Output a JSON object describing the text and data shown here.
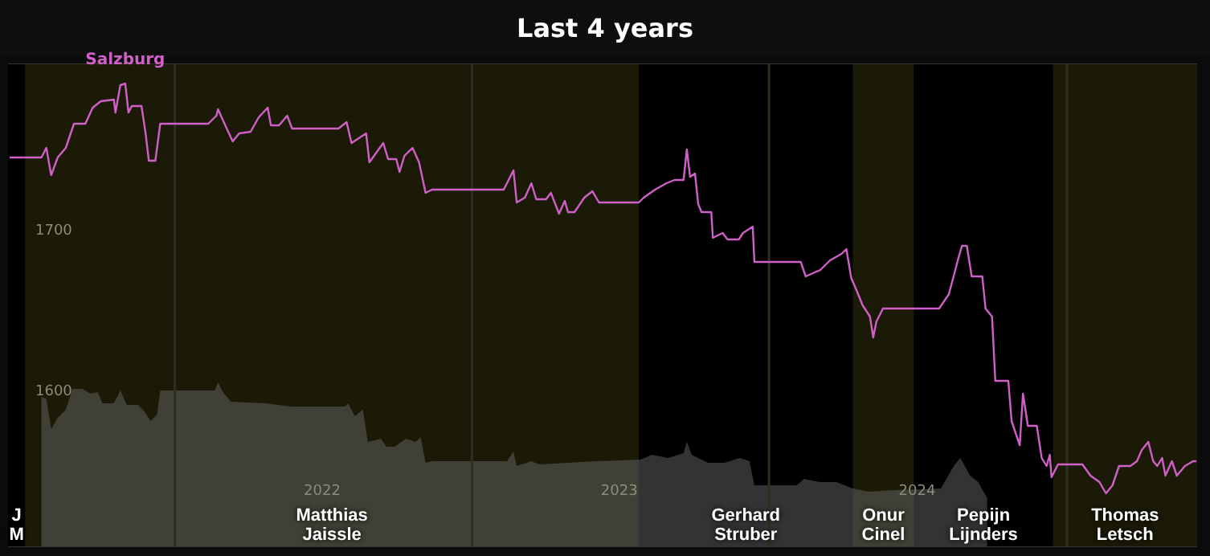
{
  "chart_data": {
    "type": "line",
    "title": "Last 4 years",
    "xlim": [
      "2021-06-10",
      "2025-06-10"
    ],
    "ylim": [
      1505,
      1805
    ],
    "yticks": [
      1600,
      1700
    ],
    "xticks": [
      {
        "value": "2022-07-01",
        "label": "2022"
      },
      {
        "value": "2023-07-01",
        "label": "2023"
      },
      {
        "value": "2024-07-01",
        "label": "2024"
      }
    ],
    "grid": "y",
    "legend": false,
    "ref_lines": [
      {
        "axis": "x",
        "value": "2022-01-01",
        "color": "#2e2e22"
      },
      {
        "axis": "x",
        "value": "2023-01-01",
        "color": "#2e2e22"
      },
      {
        "axis": "x",
        "value": "2024-01-01",
        "color": "#2e2e22"
      },
      {
        "axis": "x",
        "value": "2025-01-01",
        "color": "#2e2e22"
      }
    ],
    "bands": [
      {
        "axis": "x",
        "from": "2021-06-10",
        "to": "2021-07-01",
        "label": "J M",
        "color": "#000000"
      },
      {
        "axis": "x",
        "from": "2021-07-01",
        "to": "2023-07-25",
        "label": "Matthias Jaissle",
        "color": "#1b1a07"
      },
      {
        "axis": "x",
        "from": "2023-07-25",
        "to": "2024-04-13",
        "label": "Gerhard Struber",
        "color": "#000000"
      },
      {
        "axis": "x",
        "from": "2024-04-13",
        "to": "2024-06-27",
        "label": "Onur Cinel",
        "color": "#1b1a07"
      },
      {
        "axis": "x",
        "from": "2024-06-27",
        "to": "2024-12-15",
        "label": "Pepijn Lijnders",
        "color": "#000000"
      },
      {
        "axis": "x",
        "from": "2024-12-15",
        "to": "2025-06-10",
        "label": "Thomas Letsch",
        "color": "#1b1a07"
      }
    ],
    "series": [
      {
        "type": "area",
        "color": "#666666",
        "x": [
          "2021-07-21",
          "2021-07-27",
          "2021-08-02",
          "2021-08-10",
          "2021-08-20",
          "2021-08-28",
          "2021-09-09",
          "2021-09-20",
          "2021-09-28",
          "2021-10-04",
          "2021-10-18",
          "2021-10-26",
          "2021-11-03",
          "2021-11-17",
          "2021-11-26",
          "2021-12-02",
          "2021-12-10",
          "2021-12-14",
          "2022-02-19",
          "2022-02-23",
          "2022-03-01",
          "2022-03-11",
          "2022-04-23",
          "2022-05-23",
          "2022-07-29",
          "2022-08-02",
          "2022-08-10",
          "2022-08-20",
          "2022-08-26",
          "2022-09-11",
          "2022-09-18",
          "2022-09-28",
          "2022-10-12",
          "2022-10-24",
          "2022-10-30",
          "2022-11-05",
          "2022-11-13",
          "2023-02-13",
          "2023-02-21",
          "2023-02-25",
          "2023-03-15",
          "2023-03-25",
          "2023-06-02",
          "2023-07-27",
          "2023-08-10",
          "2023-08-30",
          "2023-09-18",
          "2023-09-22",
          "2023-09-28",
          "2023-10-18",
          "2023-11-07",
          "2023-11-26",
          "2023-12-08",
          "2023-12-14",
          "2024-02-04",
          "2024-02-13",
          "2024-03-04",
          "2024-03-24",
          "2024-04-13",
          "2024-05-02",
          "2024-06-01",
          "2024-07-30",
          "2024-08-15",
          "2024-08-23",
          "2024-09-04",
          "2024-09-14",
          "2024-09-25"
        ],
        "values": [
          1598,
          1597,
          1578,
          1585,
          1590,
          1603,
          1603,
          1600,
          1601,
          1594,
          1594,
          1602,
          1593,
          1593,
          1588,
          1583,
          1587,
          1602,
          1602,
          1607,
          1601,
          1595,
          1594,
          1592,
          1592,
          1594,
          1586,
          1590,
          1570,
          1572,
          1567,
          1567,
          1572,
          1570,
          1573,
          1557,
          1558,
          1558,
          1564,
          1555,
          1558,
          1556,
          1558,
          1559,
          1562,
          1560,
          1563,
          1570,
          1562,
          1557,
          1557,
          1560,
          1558,
          1543,
          1543,
          1547,
          1545,
          1545,
          1541,
          1539,
          1540,
          1541,
          1555,
          1560,
          1549,
          1545,
          1535
        ]
      },
      {
        "type": "line",
        "name": "Salzburg",
        "color": "#d060c8",
        "x": [
          "2021-06-12",
          "2021-07-21",
          "2021-07-27",
          "2021-08-02",
          "2021-08-10",
          "2021-08-20",
          "2021-08-30",
          "2021-09-13",
          "2021-09-22",
          "2021-10-02",
          "2021-10-18",
          "2021-10-20",
          "2021-10-26",
          "2021-11-01",
          "2021-11-05",
          "2021-11-09",
          "2021-11-21",
          "2021-11-26",
          "2021-11-30",
          "2021-12-08",
          "2021-12-14",
          "2022-02-11",
          "2022-02-21",
          "2022-02-23",
          "2022-03-03",
          "2022-03-13",
          "2022-03-21",
          "2022-04-04",
          "2022-04-14",
          "2022-04-25",
          "2022-04-29",
          "2022-05-09",
          "2022-05-19",
          "2022-05-25",
          "2022-07-21",
          "2022-07-31",
          "2022-08-06",
          "2022-08-24",
          "2022-08-28",
          "2022-09-14",
          "2022-09-20",
          "2022-09-30",
          "2022-10-04",
          "2022-10-10",
          "2022-10-20",
          "2022-10-28",
          "2022-11-05",
          "2022-11-13",
          "2023-02-09",
          "2023-02-21",
          "2023-02-25",
          "2023-03-07",
          "2023-03-15",
          "2023-03-21",
          "2023-04-02",
          "2023-04-08",
          "2023-04-18",
          "2023-04-25",
          "2023-04-29",
          "2023-05-07",
          "2023-05-19",
          "2023-05-29",
          "2023-06-06",
          "2023-07-25",
          "2023-07-31",
          "2023-08-14",
          "2023-08-28",
          "2023-09-07",
          "2023-09-18",
          "2023-09-22",
          "2023-09-26",
          "2023-10-02",
          "2023-10-06",
          "2023-10-10",
          "2023-10-22",
          "2023-10-24",
          "2023-11-05",
          "2023-11-11",
          "2023-11-25",
          "2023-11-30",
          "2023-12-12",
          "2023-12-14",
          "2024-02-09",
          "2024-02-15",
          "2024-03-04",
          "2024-03-16",
          "2024-03-30",
          "2024-04-05",
          "2024-04-11",
          "2024-04-17",
          "2024-04-25",
          "2024-05-04",
          "2024-05-08",
          "2024-05-12",
          "2024-05-20",
          "2024-07-28",
          "2024-08-09",
          "2024-08-21",
          "2024-08-25",
          "2024-08-31",
          "2024-09-06",
          "2024-09-19",
          "2024-09-23",
          "2024-10-01",
          "2024-10-05",
          "2024-10-21",
          "2024-10-25",
          "2024-11-04",
          "2024-11-08",
          "2024-11-14",
          "2024-11-25",
          "2024-12-01",
          "2024-12-07",
          "2024-12-11",
          "2024-12-13",
          "2024-12-21",
          "2025-01-20",
          "2025-01-30",
          "2025-02-10",
          "2025-02-18",
          "2025-02-26",
          "2025-03-06",
          "2025-03-14",
          "2025-03-20",
          "2025-03-28",
          "2025-04-03",
          "2025-04-11",
          "2025-04-17",
          "2025-04-22",
          "2025-04-28",
          "2025-05-02",
          "2025-05-10",
          "2025-05-16",
          "2025-05-26",
          "2025-06-05",
          "2025-06-09"
        ],
        "values": [
          1747,
          1747,
          1753,
          1736,
          1747,
          1753,
          1768,
          1768,
          1778,
          1782,
          1783,
          1775,
          1792,
          1793,
          1775,
          1779,
          1779,
          1762,
          1745,
          1745,
          1768,
          1768,
          1773,
          1777,
          1768,
          1757,
          1762,
          1763,
          1772,
          1778,
          1767,
          1767,
          1773,
          1765,
          1765,
          1769,
          1756,
          1762,
          1744,
          1756,
          1746,
          1746,
          1738,
          1748,
          1753,
          1744,
          1725,
          1727,
          1727,
          1739,
          1719,
          1722,
          1731,
          1721,
          1721,
          1725,
          1712,
          1720,
          1713,
          1713,
          1722,
          1726,
          1719,
          1719,
          1722,
          1727,
          1731,
          1733,
          1733,
          1752,
          1735,
          1737,
          1718,
          1713,
          1713,
          1697,
          1700,
          1696,
          1696,
          1700,
          1704,
          1682,
          1682,
          1673,
          1677,
          1683,
          1687,
          1690,
          1672,
          1665,
          1655,
          1648,
          1635,
          1645,
          1653,
          1653,
          1662,
          1685,
          1692,
          1692,
          1673,
          1673,
          1653,
          1648,
          1608,
          1608,
          1583,
          1568,
          1600,
          1580,
          1580,
          1560,
          1555,
          1562,
          1548,
          1556,
          1556,
          1549,
          1545,
          1538,
          1543,
          1555,
          1555,
          1555,
          1558,
          1565,
          1570,
          1558,
          1555,
          1560,
          1549,
          1558,
          1549,
          1555,
          1558,
          1558
        ]
      }
    ]
  }
}
